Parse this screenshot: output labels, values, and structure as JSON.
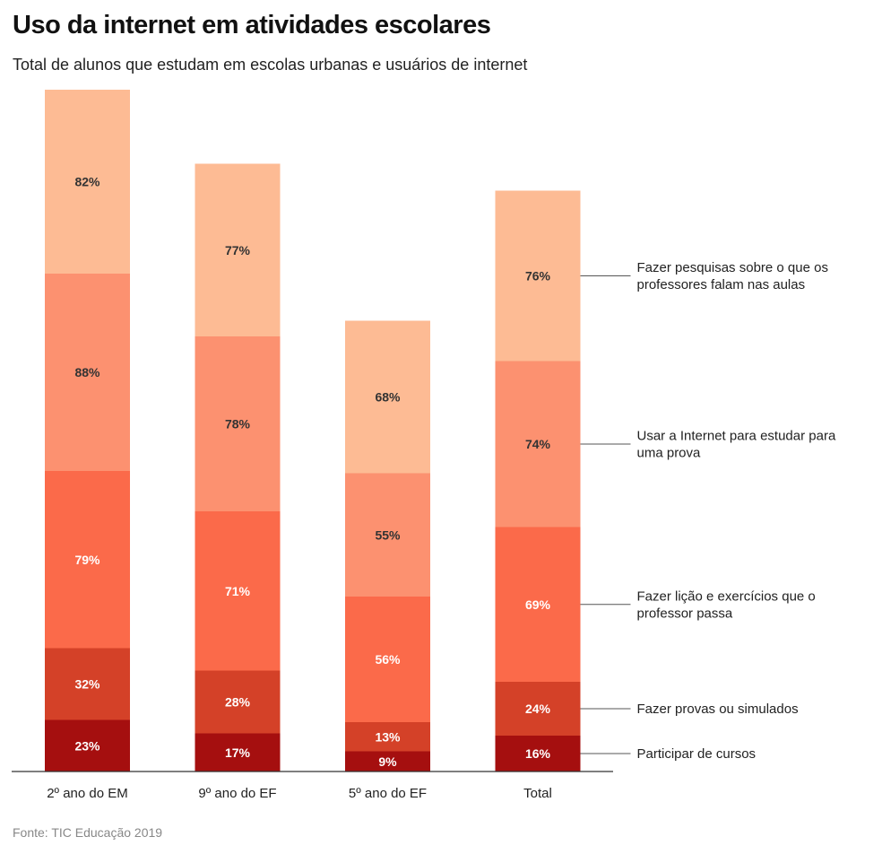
{
  "title": "Uso da internet em atividades escolares",
  "subtitle": "Total de alunos que estudam em escolas urbanas e usuários de internet",
  "source": "Fonte: TIC Educação 2019",
  "chart_data": {
    "type": "bar",
    "stacked": true,
    "categories": [
      "2º ano do EM",
      "9º ano do EF",
      "5º ano do EF",
      "Total"
    ],
    "series": [
      {
        "name": "Participar de cursos",
        "values": [
          23,
          17,
          9,
          16
        ],
        "color": "#a50f0f"
      },
      {
        "name": "Fazer provas ou simulados",
        "values": [
          32,
          28,
          13,
          24
        ],
        "color": "#d44128"
      },
      {
        "name": "Fazer lição e exercícios que o professor passa",
        "values": [
          79,
          71,
          56,
          69
        ],
        "color": "#fb6a4a"
      },
      {
        "name": "Usar a Internet para estudar para uma prova",
        "values": [
          88,
          78,
          55,
          74
        ],
        "color": "#fc9170"
      },
      {
        "name": "Fazer pesquisas sobre o que os professores falam nas aulas",
        "values": [
          82,
          77,
          68,
          76
        ],
        "color": "#fdbb94"
      }
    ],
    "value_suffix": "%",
    "legend_position": "right",
    "grid": false
  }
}
